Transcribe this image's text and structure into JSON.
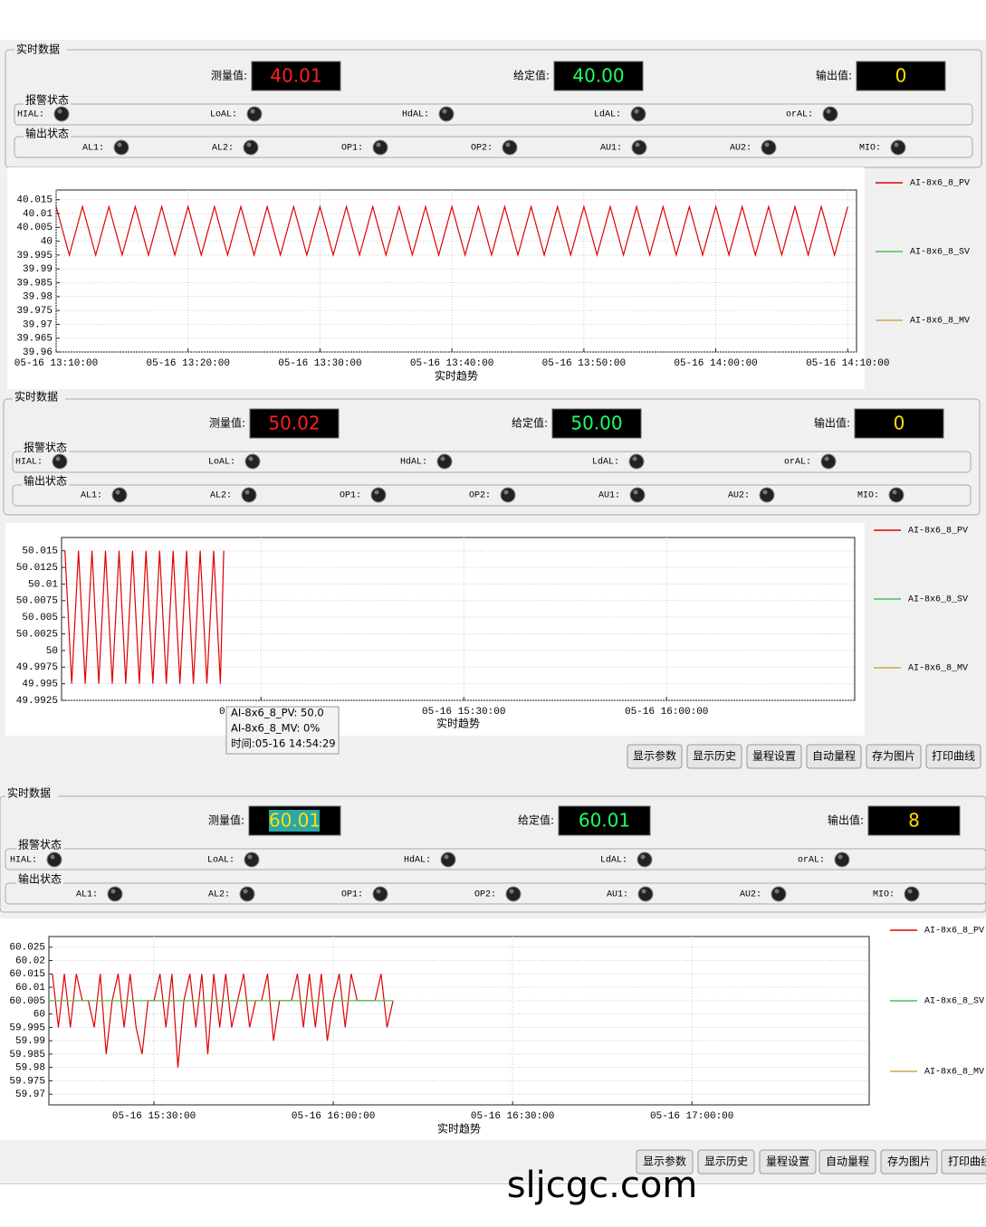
{
  "panels": [
    {
      "title": "实时数据",
      "readouts": [
        {
          "label": "测量值:",
          "value": "40.01",
          "color": "#ff2020"
        },
        {
          "label": "给定值:",
          "value": "40.00",
          "color": "#20ff60"
        },
        {
          "label": "输出值:",
          "value": "0",
          "color": "#ffe000"
        }
      ],
      "alarm_title": "报警状态",
      "alarms": [
        "HIAL:",
        "LoAL:",
        "HdAL:",
        "LdAL:",
        "orAL:"
      ],
      "output_title": "输出状态",
      "outputs": [
        "AL1:",
        "AL2:",
        "OP1:",
        "OP2:",
        "AU1:",
        "AU2:",
        "MIO:"
      ],
      "chart_data": {
        "type": "line",
        "x_label": "实时趋势",
        "grid": true,
        "xlim": [
          "05-16 13:10:00",
          "05-16 14:10:40"
        ],
        "xticks": [
          "05-16 13:10:00",
          "05-16 13:20:00",
          "05-16 13:30:00",
          "05-16 13:40:00",
          "05-16 13:50:00",
          "05-16 14:00:00",
          "05-16 14:10:00"
        ],
        "ylim": [
          39.96,
          40.0185
        ],
        "yticks": [
          39.96,
          39.965,
          39.97,
          39.975,
          39.98,
          39.985,
          39.99,
          39.995,
          40,
          40.005,
          40.01,
          40.015
        ],
        "series": [
          {
            "name": "AI-8x6_8_PV",
            "color": "#e00000",
            "x": [
              "05-16 13:10:00",
              "05-16 13:11:00",
              "05-16 13:12:00",
              "05-16 13:13:00",
              "05-16 13:14:00",
              "05-16 13:15:00",
              "05-16 13:16:00",
              "05-16 13:17:00",
              "05-16 13:18:00",
              "05-16 13:19:00",
              "05-16 13:20:00",
              "05-16 13:21:00",
              "05-16 13:22:00",
              "05-16 13:23:00",
              "05-16 13:24:00",
              "05-16 13:25:00",
              "05-16 13:26:00",
              "05-16 13:27:00",
              "05-16 13:28:00",
              "05-16 13:29:00",
              "05-16 13:30:00",
              "05-16 13:31:00",
              "05-16 13:32:00",
              "05-16 13:33:00",
              "05-16 13:34:00",
              "05-16 13:35:00",
              "05-16 13:36:00",
              "05-16 13:37:00",
              "05-16 13:38:00",
              "05-16 13:39:00",
              "05-16 13:40:00",
              "05-16 13:41:00",
              "05-16 13:42:00",
              "05-16 13:43:00",
              "05-16 13:44:00",
              "05-16 13:45:00",
              "05-16 13:46:00",
              "05-16 13:47:00",
              "05-16 13:48:00",
              "05-16 13:49:00",
              "05-16 13:50:00",
              "05-16 13:51:00",
              "05-16 13:52:00",
              "05-16 13:53:00",
              "05-16 13:54:00",
              "05-16 13:55:00",
              "05-16 13:56:00",
              "05-16 13:57:00",
              "05-16 13:58:00",
              "05-16 13:59:00",
              "05-16 14:00:00",
              "05-16 14:01:00",
              "05-16 14:02:00",
              "05-16 14:03:00",
              "05-16 14:04:00",
              "05-16 14:05:00",
              "05-16 14:06:00",
              "05-16 14:07:00",
              "05-16 14:08:00",
              "05-16 14:09:00",
              "05-16 14:10:00"
            ],
            "values": [
              40.0125,
              39.995,
              40.0125,
              39.995,
              40.0125,
              39.995,
              40.0125,
              39.995,
              40.0125,
              39.995,
              40.0125,
              39.995,
              40.0125,
              39.995,
              40.0125,
              39.995,
              40.0125,
              39.995,
              40.0125,
              39.995,
              40.0125,
              39.995,
              40.0125,
              39.995,
              40.0125,
              39.995,
              40.0125,
              39.995,
              40.0125,
              39.995,
              40.0125,
              39.995,
              40.0125,
              39.995,
              40.0125,
              39.995,
              40.0125,
              39.995,
              40.0125,
              39.995,
              40.0125,
              39.995,
              40.0125,
              39.995,
              40.0125,
              39.995,
              40.0125,
              39.995,
              40.0125,
              39.995,
              40.0125,
              39.995,
              40.0125,
              39.995,
              40.0125,
              39.995,
              40.0125,
              39.995,
              40.0125,
              39.995,
              40.0125
            ]
          },
          {
            "name": "AI-8x6_8_SV",
            "color": "#50c050"
          },
          {
            "name": "AI-8x6_8_MV",
            "color": "#d8a050"
          }
        ]
      }
    },
    {
      "title": "实时数据",
      "readouts": [
        {
          "label": "测量值:",
          "value": "50.02",
          "color": "#ff2020"
        },
        {
          "label": "给定值:",
          "value": "50.00",
          "color": "#20ff60"
        },
        {
          "label": "输出值:",
          "value": "0",
          "color": "#ffe000"
        }
      ],
      "alarm_title": "报警状态",
      "alarms": [
        "HIAL:",
        "LoAL:",
        "HdAL:",
        "LdAL:",
        "orAL:"
      ],
      "output_title": "输出状态",
      "outputs": [
        "AL1:",
        "AL2:",
        "OP1:",
        "OP2:",
        "AU1:",
        "AU2:",
        "MIO:"
      ],
      "chart_data": {
        "type": "line",
        "x_label": "实时趋势",
        "grid": true,
        "xlim": [
          "05-16 14:30:30",
          "05-16 16:27:50"
        ],
        "xticks": [
          "05-16 15:00:00",
          "05-16 15:30:00",
          "05-16 16:00:00"
        ],
        "ylim": [
          49.9925,
          50.017
        ],
        "yticks": [
          49.9925,
          49.995,
          49.9975,
          50,
          50.0025,
          50.005,
          50.0075,
          50.01,
          50.0125,
          50.015
        ],
        "series": [
          {
            "name": "AI-8x6_8_PV",
            "color": "#e00000",
            "x": [
              "05-16 14:31:00",
              "05-16 14:32:00",
              "05-16 14:33:00",
              "05-16 14:34:00",
              "05-16 14:35:00",
              "05-16 14:36:00",
              "05-16 14:37:00",
              "05-16 14:38:00",
              "05-16 14:39:00",
              "05-16 14:40:00",
              "05-16 14:41:00",
              "05-16 14:42:00",
              "05-16 14:43:00",
              "05-16 14:44:00",
              "05-16 14:45:00",
              "05-16 14:46:00",
              "05-16 14:47:00",
              "05-16 14:48:00",
              "05-16 14:49:00",
              "05-16 14:50:00",
              "05-16 14:51:00",
              "05-16 14:52:00",
              "05-16 14:53:00",
              "05-16 14:54:00",
              "05-16 14:54:29"
            ],
            "values": [
              50.015,
              49.995,
              50.015,
              49.995,
              50.015,
              49.995,
              50.015,
              49.995,
              50.015,
              49.995,
              50.015,
              49.995,
              50.015,
              49.995,
              50.015,
              49.995,
              50.015,
              49.995,
              50.015,
              49.995,
              50.015,
              49.995,
              50.015,
              49.995,
              50.015
            ]
          },
          {
            "name": "AI-8x6_8_SV",
            "color": "#50c050"
          },
          {
            "name": "AI-8x6_8_MV",
            "color": "#d8a050"
          }
        ]
      },
      "buttons": [
        "显示参数",
        "显示历史",
        "量程设置",
        "自动量程",
        "存为图片",
        "打印曲线"
      ],
      "tooltip": [
        "AI-8x6_8_PV: 50.0",
        "AI-8x6_8_MV: 0%",
        "时间:05-16 14:54:29"
      ]
    },
    {
      "title": "实时数据",
      "readouts": [
        {
          "label": "测量值:",
          "value": "60.01",
          "color": "#ffe000"
        },
        {
          "label": "给定值:",
          "value": "60.01",
          "color": "#20ff60"
        },
        {
          "label": "输出值:",
          "value": "8",
          "color": "#ffe000"
        }
      ],
      "alarm_title": "报警状态",
      "alarms": [
        "HIAL:",
        "LoAL:",
        "HdAL:",
        "LdAL:",
        "orAL:"
      ],
      "output_title": "输出状态",
      "outputs": [
        "AL1:",
        "AL2:",
        "OP1:",
        "OP2:",
        "AU1:",
        "AU2:",
        "MIO:"
      ],
      "chart_data": {
        "type": "line",
        "x_label": "实时趋势",
        "grid": true,
        "xlim": [
          "05-16 15:12:25",
          "05-16 17:29:40"
        ],
        "xticks": [
          "05-16 15:30:00",
          "05-16 16:00:00",
          "05-16 16:30:00",
          "05-16 17:00:00"
        ],
        "ylim": [
          59.966,
          60.029
        ],
        "yticks": [
          59.97,
          59.975,
          59.98,
          59.985,
          59.99,
          59.995,
          60,
          60.005,
          60.01,
          60.015,
          60.02,
          60.025
        ],
        "series": [
          {
            "name": "AI-8x6_8_PV",
            "color": "#e00000",
            "x": [
              "05-16 15:13:00",
              "05-16 15:14:00",
              "05-16 15:15:00",
              "05-16 15:16:00",
              "05-16 15:17:00",
              "05-16 15:18:00",
              "05-16 15:19:00",
              "05-16 15:20:00",
              "05-16 15:21:00",
              "05-16 15:22:00",
              "05-16 15:23:00",
              "05-16 15:24:00",
              "05-16 15:25:00",
              "05-16 15:26:00",
              "05-16 15:27:00",
              "05-16 15:28:00",
              "05-16 15:29:00",
              "05-16 15:30:00",
              "05-16 15:31:00",
              "05-16 15:32:00",
              "05-16 15:33:00",
              "05-16 15:34:00",
              "05-16 15:35:00",
              "05-16 15:36:00",
              "05-16 15:37:00",
              "05-16 15:38:00",
              "05-16 15:39:00",
              "05-16 15:40:00",
              "05-16 15:41:00",
              "05-16 15:42:00",
              "05-16 15:43:00",
              "05-16 15:44:00",
              "05-16 15:45:00",
              "05-16 15:46:00",
              "05-16 15:47:00",
              "05-16 15:48:00",
              "05-16 15:49:00",
              "05-16 15:50:00",
              "05-16 15:51:00",
              "05-16 15:52:00",
              "05-16 15:53:00",
              "05-16 15:54:00",
              "05-16 15:55:00",
              "05-16 15:56:00",
              "05-16 15:57:00",
              "05-16 15:58:00",
              "05-16 15:59:00",
              "05-16 16:00:00",
              "05-16 16:01:00",
              "05-16 16:02:00",
              "05-16 16:03:00",
              "05-16 16:04:00",
              "05-16 16:05:00",
              "05-16 16:06:00",
              "05-16 16:07:00",
              "05-16 16:08:00",
              "05-16 16:09:00",
              "05-16 16:10:00"
            ],
            "values": [
              60.015,
              59.995,
              60.015,
              59.995,
              60.015,
              60.005,
              60.005,
              59.995,
              60.015,
              59.985,
              60.005,
              60.015,
              59.995,
              60.015,
              59.995,
              59.985,
              60.005,
              60.005,
              60.015,
              59.995,
              60.015,
              59.98,
              60.005,
              60.015,
              59.995,
              60.015,
              59.985,
              60.015,
              59.995,
              60.015,
              59.995,
              60.005,
              60.015,
              59.995,
              60.005,
              60.005,
              60.015,
              59.99,
              60.005,
              60.005,
              60.005,
              60.015,
              59.995,
              60.015,
              59.995,
              60.015,
              59.99,
              60.005,
              60.015,
              59.995,
              60.015,
              60.005,
              60.005,
              60.005,
              60.005,
              60.015,
              59.995,
              60.005
            ]
          },
          {
            "name": "AI-8x6_8_SV",
            "color": "#50c050",
            "x": [
              "05-16 15:12:25",
              "05-16 16:10:00"
            ],
            "values": [
              60.005,
              60.005
            ]
          },
          {
            "name": "AI-8x6_8_MV",
            "color": "#d8a050"
          }
        ]
      },
      "buttons": [
        "显示参数",
        "显示历史",
        "量程设置",
        "自动量程",
        "存为图片",
        "打印曲线"
      ]
    }
  ],
  "watermark": "sljcgc.com"
}
